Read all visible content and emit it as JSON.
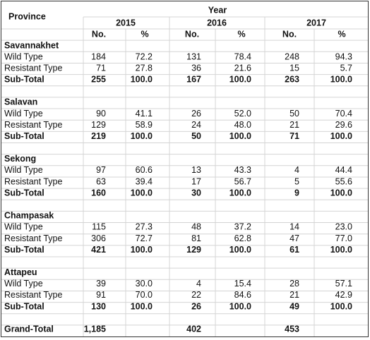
{
  "header": {
    "province": "Province",
    "year": "Year",
    "years": [
      "2015",
      "2016",
      "2017"
    ],
    "subheaders": [
      "No.",
      "%",
      "No.",
      "%",
      "No.",
      "%"
    ]
  },
  "provinces": [
    {
      "name": "Savannakhet",
      "rows": [
        {
          "label": "Wild Type",
          "cells": [
            "184",
            "72.2",
            "131",
            "78.4",
            "248",
            "94.3"
          ]
        },
        {
          "label": "Resistant Type",
          "cells": [
            "71",
            "27.8",
            "36",
            "21.6",
            "15",
            "5.7"
          ]
        },
        {
          "label": "Sub-Total",
          "cells": [
            "255",
            "100.0",
            "167",
            "100.0",
            "263",
            "100.0"
          ]
        }
      ]
    },
    {
      "name": "Salavan",
      "rows": [
        {
          "label": "Wild Type",
          "cells": [
            "90",
            "41.1",
            "26",
            "52.0",
            "50",
            "70.4"
          ]
        },
        {
          "label": "Resistant Type",
          "cells": [
            "129",
            "58.9",
            "24",
            "48.0",
            "21",
            "29.6"
          ]
        },
        {
          "label": "Sub-Total",
          "cells": [
            "219",
            "100.0",
            "50",
            "100.0",
            "71",
            "100.0"
          ]
        }
      ]
    },
    {
      "name": "Sekong",
      "rows": [
        {
          "label": "Wild Type",
          "cells": [
            "97",
            "60.6",
            "13",
            "43.3",
            "4",
            "44.4"
          ]
        },
        {
          "label": "Resistant Type",
          "cells": [
            "63",
            "39.4",
            "17",
            "56.7",
            "5",
            "55.6"
          ]
        },
        {
          "label": "Sub-Total",
          "cells": [
            "160",
            "100.0",
            "30",
            "100.0",
            "9",
            "100.0"
          ]
        }
      ]
    },
    {
      "name": "Champasak",
      "rows": [
        {
          "label": "Wild Type",
          "cells": [
            "115",
            "27.3",
            "48",
            "37.2",
            "14",
            "23.0"
          ]
        },
        {
          "label": "Resistant Type",
          "cells": [
            "306",
            "72.7",
            "81",
            "62.8",
            "47",
            "77.0"
          ]
        },
        {
          "label": "Sub-Total",
          "cells": [
            "421",
            "100.0",
            "129",
            "100.0",
            "61",
            "100.0"
          ]
        }
      ]
    },
    {
      "name": "Attapeu",
      "rows": [
        {
          "label": "Wild Type",
          "cells": [
            "39",
            "30.0",
            "4",
            "15.4",
            "28",
            "57.1"
          ]
        },
        {
          "label": "Resistant Type",
          "cells": [
            "91",
            "70.0",
            "22",
            "84.6",
            "21",
            "42.9"
          ]
        },
        {
          "label": "Sub-Total",
          "cells": [
            "130",
            "100.0",
            "26",
            "100.0",
            "49",
            "100.0"
          ]
        }
      ]
    }
  ],
  "grand_total": {
    "label": "Grand-Total",
    "cells": [
      "1,185",
      "402",
      "453"
    ]
  }
}
